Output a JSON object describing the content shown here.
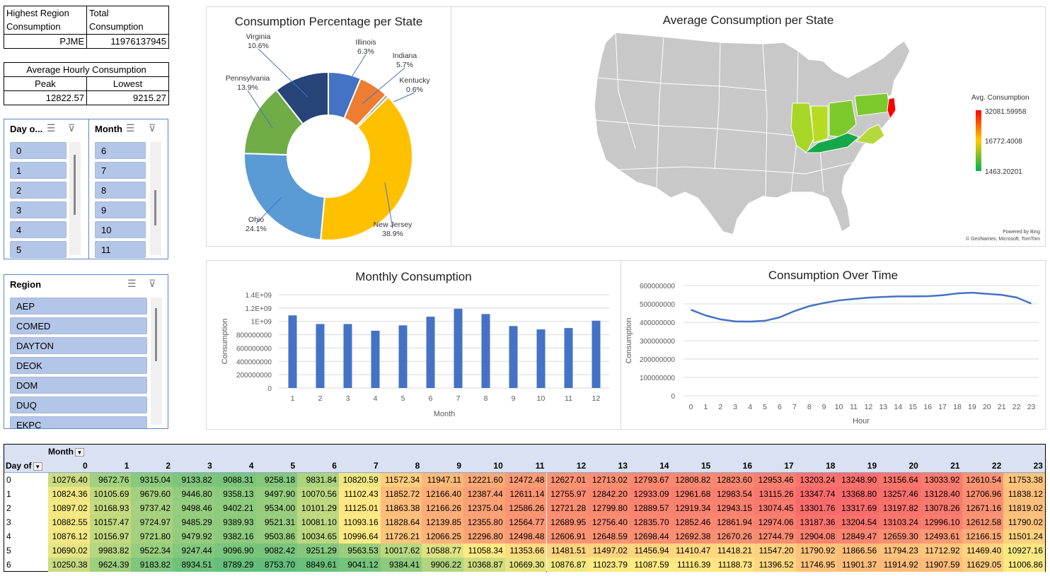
{
  "kpi1": {
    "h1": "Highest Region",
    "h1b": "Consumption",
    "h2": "Total",
    "h2b": "Consumption",
    "region": "PJME",
    "total": "11976137945"
  },
  "kpi2": {
    "title": "Average Hourly Consumption",
    "peak_label": "Peak",
    "lowest_label": "Lowest",
    "peak": "12822.57",
    "lowest": "9215.27"
  },
  "slicer_day": {
    "title": "Day o...",
    "items": [
      "0",
      "1",
      "2",
      "3",
      "4",
      "5"
    ]
  },
  "slicer_month": {
    "title": "Month",
    "items": [
      "6",
      "7",
      "8",
      "9",
      "10",
      "11"
    ]
  },
  "slicer_region": {
    "title": "Region",
    "items": [
      "AEP",
      "COMED",
      "DAYTON",
      "DEOK",
      "DOM",
      "DUQ",
      "EKPC"
    ]
  },
  "map": {
    "title": "Average Consumption per State",
    "legend_title": "Avg. Consumption",
    "legend_max": "32081.59958",
    "legend_mid": "16772.4008",
    "legend_min": "1463.20201",
    "powered": "Powered by Bing",
    "credit": "© GeoNames, Microsoft, TomTom",
    "colors": {
      "high": "#ff0000",
      "mid": "#ffcc00",
      "low": "#00b050",
      "land": "#c8c8c8"
    }
  },
  "chart_data": [
    {
      "type": "pie",
      "title": "Consumption Percentage per State",
      "labels": [
        "Illinois",
        "Indiana",
        "Kentucky",
        "New Jersey",
        "Ohio",
        "Pennsylvania",
        "Virginia"
      ],
      "percent_labels": [
        "6.3%",
        "5.7%",
        "0.6%",
        "38.9%",
        "24.1%",
        "13.9%",
        "10.6%"
      ],
      "values": [
        6.3,
        5.7,
        0.6,
        38.9,
        24.1,
        13.9,
        10.6
      ],
      "colors": [
        "#4472c4",
        "#ed7d31",
        "#a5a5a5",
        "#ffc000",
        "#5b9bd5",
        "#70ad47",
        "#264478"
      ]
    },
    {
      "type": "bar",
      "title": "Monthly Consumption",
      "xlabel": "Month",
      "ylabel": "Consumption",
      "categories": [
        "1",
        "2",
        "3",
        "4",
        "5",
        "6",
        "7",
        "8",
        "9",
        "10",
        "11",
        "12"
      ],
      "values": [
        1090000000,
        960000000,
        960000000,
        860000000,
        940000000,
        1070000000,
        1190000000,
        1110000000,
        930000000,
        880000000,
        900000000,
        1010000000
      ],
      "yticks": [
        "0",
        "200000000",
        "400000000",
        "600000000",
        "800000000",
        "1E+09",
        "1.2E+09",
        "1.4E+09"
      ],
      "ylim": [
        0,
        1400000000
      ],
      "color": "#4472c4"
    },
    {
      "type": "line",
      "title": "Consumption Over Time",
      "xlabel": "Hour",
      "ylabel": "Consumption",
      "categories": [
        "0",
        "1",
        "2",
        "3",
        "4",
        "5",
        "6",
        "7",
        "8",
        "9",
        "10",
        "11",
        "12",
        "13",
        "14",
        "15",
        "16",
        "17",
        "18",
        "19",
        "20",
        "21",
        "22",
        "23"
      ],
      "values": [
        468000000,
        437000000,
        416000000,
        405000000,
        404000000,
        408000000,
        427000000,
        461000000,
        488000000,
        505000000,
        519000000,
        527000000,
        534000000,
        538000000,
        541000000,
        541000000,
        542000000,
        547000000,
        557000000,
        561000000,
        555000000,
        549000000,
        535000000,
        502000000
      ],
      "yticks": [
        "0",
        "100000000",
        "200000000",
        "300000000",
        "400000000",
        "500000000",
        "600000000"
      ],
      "ylim": [
        0,
        600000000
      ],
      "color": "#4472c4"
    }
  ],
  "pivot": {
    "col_field": "Month",
    "row_field": "Day of",
    "cols": [
      "0",
      "1",
      "2",
      "3",
      "4",
      "5",
      "6",
      "7",
      "8",
      "9",
      "10",
      "11",
      "12",
      "13",
      "14",
      "15",
      "16",
      "17",
      "18",
      "19",
      "20",
      "21",
      "22",
      "23"
    ],
    "rows": [
      {
        "label": "0",
        "values": [
          "10276.40",
          "9672.76",
          "9315.04",
          "9133.82",
          "9088.31",
          "9258.18",
          "9831.84",
          "10820.59",
          "11572.34",
          "11947.11",
          "12221.60",
          "12472.48",
          "12627.01",
          "12713.02",
          "12793.67",
          "12808.82",
          "12823.60",
          "12953.46",
          "13203.24",
          "13248.90",
          "13156.64",
          "13033.92",
          "12610.54",
          "11753.38"
        ]
      },
      {
        "label": "1",
        "values": [
          "10824.36",
          "10105.69",
          "9679.60",
          "9446.80",
          "9358.13",
          "9497.90",
          "10070.56",
          "11102.43",
          "11852.72",
          "12166.40",
          "12387.44",
          "12611.14",
          "12755.97",
          "12842.20",
          "12933.09",
          "12961.68",
          "12983.54",
          "13115.26",
          "13347.74",
          "13368.80",
          "13257.46",
          "13128.40",
          "12706.96",
          "11838.12"
        ]
      },
      {
        "label": "2",
        "values": [
          "10897.02",
          "10168.93",
          "9737.42",
          "9498.46",
          "9402.21",
          "9534.00",
          "10101.29",
          "11125.01",
          "11863.38",
          "12166.26",
          "12375.04",
          "12586.26",
          "12721.28",
          "12799.80",
          "12889.57",
          "12919.34",
          "12943.15",
          "13074.45",
          "13301.76",
          "13317.69",
          "13197.82",
          "13078.26",
          "12671.16",
          "11819.02"
        ]
      },
      {
        "label": "3",
        "values": [
          "10882.55",
          "10157.47",
          "9724.97",
          "9485.29",
          "9389.93",
          "9521.31",
          "10081.10",
          "11093.16",
          "11828.64",
          "12139.85",
          "12355.80",
          "12564.77",
          "12689.95",
          "12756.40",
          "12835.70",
          "12852.46",
          "12861.94",
          "12974.06",
          "13187.36",
          "13204.54",
          "13103.24",
          "12996.10",
          "12612.58",
          "11790.02"
        ]
      },
      {
        "label": "4",
        "values": [
          "10876.12",
          "10156.97",
          "9721.80",
          "9479.92",
          "9382.16",
          "9503.86",
          "10034.65",
          "10996.64",
          "11726.21",
          "12066.25",
          "12296.80",
          "12498.48",
          "12606.91",
          "12648.59",
          "12698.44",
          "12692.38",
          "12670.26",
          "12744.79",
          "12904.08",
          "12849.47",
          "12659.30",
          "12493.61",
          "12166.15",
          "11501.24"
        ]
      },
      {
        "label": "5",
        "values": [
          "10690.02",
          "9983.82",
          "9522.34",
          "9247.44",
          "9096.90",
          "9082.42",
          "9251.29",
          "9563.53",
          "10017.62",
          "10588.77",
          "11058.34",
          "11353.66",
          "11481.51",
          "11497.02",
          "11456.94",
          "11410.47",
          "11418.21",
          "11547.20",
          "11790.92",
          "11866.56",
          "11794.23",
          "11712.92",
          "11469.40",
          "10927.16"
        ]
      },
      {
        "label": "6",
        "values": [
          "10250.38",
          "9624.39",
          "9183.82",
          "8934.51",
          "8789.29",
          "8753.70",
          "8849.61",
          "9041.12",
          "9384.41",
          "9906.22",
          "10368.87",
          "10669.30",
          "10876.87",
          "11023.79",
          "11087.59",
          "11116.39",
          "11188.73",
          "11396.52",
          "11746.95",
          "11901.37",
          "11914.92",
          "11907.59",
          "11629.05",
          "11006.86"
        ]
      }
    ]
  }
}
